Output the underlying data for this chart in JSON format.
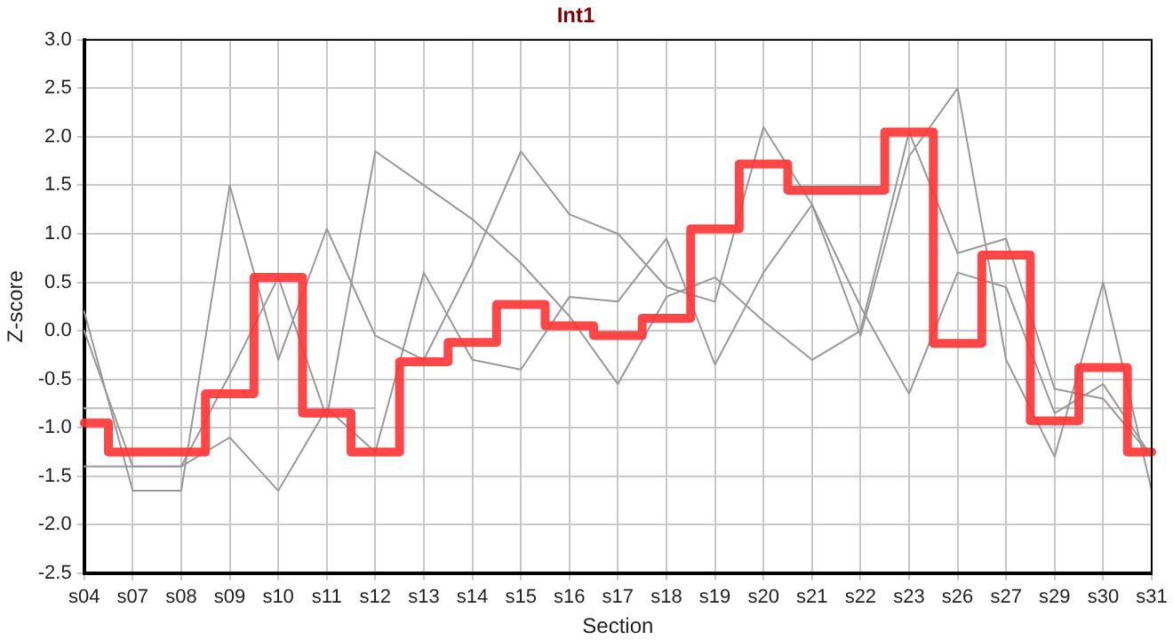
{
  "chart_data": {
    "type": "line",
    "title": "Int1",
    "xlabel": "Section",
    "ylabel": "Z-score",
    "categories": [
      "s04",
      "s07",
      "s08",
      "s09",
      "s10",
      "s11",
      "s12",
      "s13",
      "s14",
      "s15",
      "s16",
      "s17",
      "s18",
      "s19",
      "s20",
      "s21",
      "s22",
      "s23",
      "s26",
      "s27",
      "s29",
      "s30",
      "s31"
    ],
    "series": [
      {
        "color": "#999999",
        "values": [
          0.2,
          -1.65,
          -1.65,
          1.5,
          -0.3,
          1.05,
          -0.05,
          -0.3,
          0.7,
          1.85,
          1.2,
          1.0,
          0.45,
          0.3,
          2.1,
          1.3,
          -0.05,
          1.8,
          2.5,
          -0.3,
          -1.3,
          0.5,
          -1.65
        ]
      },
      {
        "color": "#999999",
        "values": [
          0.0,
          -1.4,
          -1.4,
          -0.45,
          0.55,
          -0.9,
          1.85,
          1.5,
          1.15,
          0.7,
          0.15,
          -0.55,
          0.35,
          0.55,
          0.1,
          -0.3,
          0.0,
          2.05,
          0.8,
          0.95,
          -0.6,
          -0.7,
          -1.3
        ]
      },
      {
        "color": "#999999",
        "values": [
          -1.4,
          -1.4,
          -1.4,
          -1.1,
          -1.65,
          -0.8,
          -1.25,
          0.6,
          -0.3,
          -0.4,
          0.35,
          0.3,
          0.95,
          -0.35,
          0.6,
          1.3,
          0.25,
          -0.65,
          0.6,
          0.45,
          -0.85,
          -0.55,
          -1.3
        ]
      },
      {
        "color": "#bbbbbb",
        "values": [
          -0.8,
          -0.8,
          -0.8,
          -0.8,
          -0.8,
          -0.8,
          -0.8,
          null,
          null,
          null,
          null,
          null,
          null,
          null,
          null,
          null,
          null,
          null,
          null,
          null,
          -0.8,
          -0.8,
          -0.8
        ]
      },
      {
        "type": "step",
        "color": "#ff3333",
        "values": [
          -0.95,
          -1.25,
          -1.25,
          -0.65,
          0.55,
          -0.85,
          -1.25,
          -0.32,
          -0.12,
          0.27,
          0.05,
          -0.05,
          0.13,
          1.05,
          1.72,
          1.45,
          1.45,
          2.05,
          -0.13,
          0.78,
          -0.93,
          -0.38,
          -1.25
        ]
      }
    ],
    "ylim": [
      -2.5,
      3.0
    ],
    "yticks": [
      {
        "value": -2.5,
        "label": "-2.5"
      },
      {
        "value": -2,
        "label": "-2.0"
      },
      {
        "value": -1.5,
        "label": "-1.5"
      },
      {
        "value": -1,
        "label": "-1.0"
      },
      {
        "value": -0.5,
        "label": "-0.5"
      },
      {
        "value": 0,
        "label": "0.0"
      },
      {
        "value": 0.5,
        "label": "0.5"
      },
      {
        "value": 1,
        "label": "1.0"
      },
      {
        "value": 1.5,
        "label": "1.5"
      },
      {
        "value": 2,
        "label": "2.0"
      },
      {
        "value": 2.5,
        "label": "2.5"
      },
      {
        "value": 3,
        "label": "3.0"
      }
    ],
    "grid": true,
    "legend": false,
    "marker": "none"
  }
}
